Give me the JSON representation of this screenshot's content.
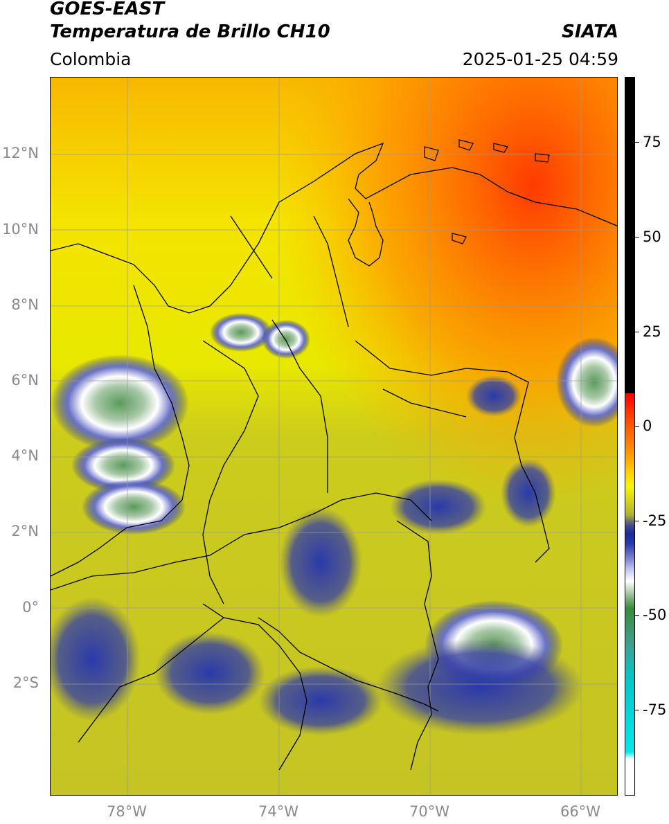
{
  "header": {
    "title_line1": "GOES-EAST",
    "title_line2": "Temperatura de Brillo CH10",
    "organization": "SIATA",
    "region": "Colombia",
    "timestamp": "2025-01-25 04:59"
  },
  "map": {
    "lat_labels": [
      "12°N",
      "10°N",
      "8°N",
      "6°N",
      "4°N",
      "2°N",
      "0°",
      "2°S"
    ],
    "lon_labels": [
      "78°W",
      "74°W",
      "70°W",
      "66°W"
    ]
  },
  "colorbar": {
    "tick_labels": [
      "75",
      "50",
      "25",
      "0",
      "-25",
      "-50",
      "-75"
    ]
  }
}
